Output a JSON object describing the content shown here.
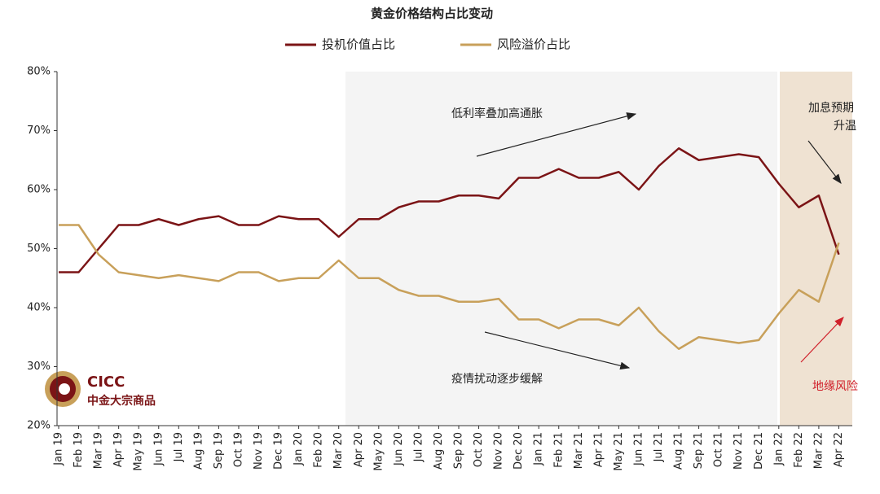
{
  "chart_data": {
    "type": "line",
    "title": "黄金价格结构占比变动",
    "categories": [
      "Jan 19",
      "Feb 19",
      "Mar 19",
      "Apr 19",
      "May 19",
      "Jun 19",
      "Jul 19",
      "Aug 19",
      "Sep 19",
      "Oct 19",
      "Nov 19",
      "Dec 19",
      "Jan 20",
      "Feb 20",
      "Mar 20",
      "Apr 20",
      "May 20",
      "Jun 20",
      "Jul 20",
      "Aug 20",
      "Sep 20",
      "Oct 20",
      "Nov 20",
      "Dec 20",
      "Jan 21",
      "Feb 21",
      "Mar 21",
      "Apr 21",
      "May 21",
      "Jun 21",
      "Jul 21",
      "Aug 21",
      "Sep 21",
      "Oct 21",
      "Nov 21",
      "Dec 21",
      "Jan 22",
      "Feb 22",
      "Mar 22",
      "Apr 22"
    ],
    "series": [
      {
        "name": "投机价值占比",
        "color": "#7b1416",
        "values": [
          46,
          46,
          50,
          54,
          54,
          55,
          54,
          55,
          55.5,
          54,
          54,
          55.5,
          55,
          55,
          52,
          55,
          55,
          57,
          58,
          58,
          59,
          59,
          58.5,
          62,
          62,
          63.5,
          62,
          62,
          63,
          60,
          64,
          67,
          65,
          65.5,
          66,
          65.5,
          61,
          57,
          59,
          49
        ]
      },
      {
        "name": "风险溢价占比",
        "color": "#c8a05a",
        "values": [
          54,
          54,
          49,
          46,
          45.5,
          45,
          45.5,
          45,
          44.5,
          46,
          46,
          44.5,
          45,
          45,
          48,
          45,
          45,
          43,
          42,
          42,
          41,
          41,
          41.5,
          38,
          38,
          36.5,
          38,
          38,
          37,
          40,
          36,
          33,
          35,
          34.5,
          34,
          34.5,
          39,
          43,
          41,
          51
        ]
      }
    ],
    "ylim": [
      20,
      80
    ],
    "yticks": [
      {
        "value": 20,
        "label": "20%"
      },
      {
        "value": 30,
        "label": "30%"
      },
      {
        "value": 40,
        "label": "40%"
      },
      {
        "value": 50,
        "label": "50%"
      },
      {
        "value": 60,
        "label": "60%"
      },
      {
        "value": 70,
        "label": "70%"
      },
      {
        "value": 80,
        "label": "80%"
      }
    ],
    "annotations": [
      "低利率叠加高通胀",
      "疫情扰动逐步缓解",
      "加息预期",
      "升温",
      "地缘风险"
    ],
    "logo": {
      "name": "CICC",
      "subtitle": "中金大宗商品"
    }
  }
}
